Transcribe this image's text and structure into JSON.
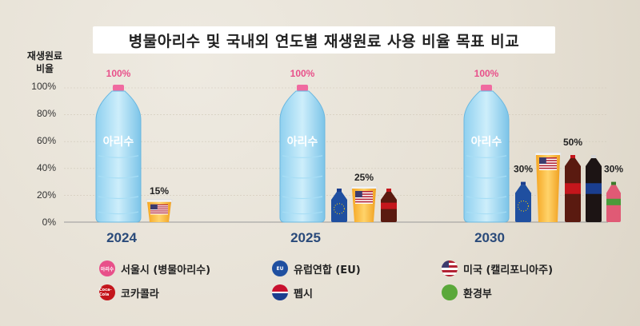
{
  "title": "병물아리수 및 국내외 연도별 재생원료 사용 비율 목표 비교",
  "ylabel_line1": "재생원료",
  "ylabel_line2": "비율",
  "bottle_text": "아리수",
  "colors": {
    "seoul": "#e8508a",
    "eu": "#1f4fa0",
    "us": "#b22234",
    "coca": "#c4161c",
    "pepsi": "#1a3e8f",
    "env": "#5aa83a",
    "value_pink": "#e8508a"
  },
  "chart_data": {
    "type": "bar",
    "title": "병물아리수 및 국내외 연도별 재생원료 사용 비율 목표 비교",
    "ylabel": "재생원료 비율",
    "ylim": [
      0,
      100
    ],
    "yticks": [
      "0%",
      "20%",
      "40%",
      "60%",
      "80%",
      "100%"
    ],
    "categories": [
      "2024",
      "2025",
      "2030"
    ],
    "groups": [
      {
        "year": "2024",
        "bars": [
          {
            "entity": "서울시 (병물아리수)",
            "value": 100,
            "label": "100%"
          },
          {
            "entity": "미국 (캘리포니아주)",
            "value": 15,
            "label": "15%"
          }
        ]
      },
      {
        "year": "2025",
        "bars": [
          {
            "entity": "서울시 (병물아리수)",
            "value": 100,
            "label": "100%"
          },
          {
            "entity": "유럽연합 (EU)",
            "value": 25,
            "label": ""
          },
          {
            "entity": "미국 (캘리포니아주)",
            "value": 25,
            "label": "25%"
          },
          {
            "entity": "코카콜라",
            "value": 25,
            "label": ""
          }
        ]
      },
      {
        "year": "2030",
        "bars": [
          {
            "entity": "서울시 (병물아리수)",
            "value": 100,
            "label": "100%"
          },
          {
            "entity": "유럽연합 (EU)",
            "value": 30,
            "label": "30%"
          },
          {
            "entity": "미국 (캘리포니아주)",
            "value": 50,
            "label": ""
          },
          {
            "entity": "코카콜라",
            "value": 50,
            "label": "50%"
          },
          {
            "entity": "펩시",
            "value": 50,
            "label": ""
          },
          {
            "entity": "환경부",
            "value": 30,
            "label": "30%"
          }
        ]
      }
    ],
    "legend": [
      "서울시 (병물아리수)",
      "유럽연합 (EU)",
      "미국 (캘리포니아주)",
      "코카콜라",
      "펩시",
      "환경부"
    ],
    "legend_placement": "bottom"
  },
  "legend": {
    "seoul": {
      "label": "서울시 (병물아리수)",
      "icon_text": "아리수"
    },
    "eu": {
      "label": "유럽연합 (EU)",
      "icon_text": "EU"
    },
    "us": {
      "label": "미국 (캘리포니아주)"
    },
    "coca": {
      "label": "코카콜라",
      "icon_text": "Coca-Cola"
    },
    "pepsi": {
      "label": "펩시",
      "icon_text": "pepsi"
    },
    "env": {
      "label": "환경부"
    }
  }
}
